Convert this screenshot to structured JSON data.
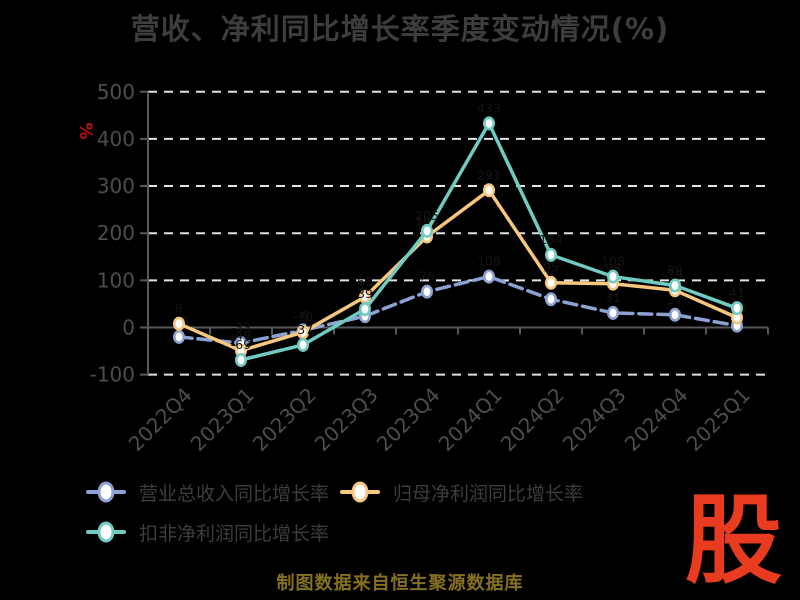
{
  "title": "营收、净利同比增长率季度变动情况(%)",
  "unit_label": "%",
  "footer": {
    "caption": "制图数据来自恒生聚源数据库",
    "logo_text": "股"
  },
  "colors": {
    "background": "#000000",
    "title": "#3d3d3d",
    "axis_text": "#4d4d4d",
    "grid": "#e3e3e3",
    "axis_line": "#585858",
    "unit_label": "#bb1111",
    "data_label": "#141414",
    "caption": "#85701f",
    "logo": "#e83b20",
    "marker_fill": "#ffffff"
  },
  "chart_data": {
    "type": "line",
    "title": "营收、净利同比增长率季度变动情况(%)",
    "xlabel": "",
    "ylabel": "%",
    "ylim": [
      -100,
      500
    ],
    "yticks": [
      -100,
      0,
      100,
      200,
      300,
      400,
      500
    ],
    "grid": true,
    "grid_style": "dashed",
    "legend_position": "bottom-left",
    "categories": [
      "2022Q4",
      "2023Q1",
      "2023Q2",
      "2023Q3",
      "2023Q4",
      "2024Q1",
      "2024Q2",
      "2024Q3",
      "2024Q4",
      "2025Q1"
    ],
    "series": [
      {
        "name": "营业总收入同比增长率",
        "color": "#8ba2d3",
        "style": "dashed",
        "values": [
          -20,
          -33,
          -6,
          24,
          76,
          108,
          60,
          31,
          27,
          4
        ]
      },
      {
        "name": "归母净利润同比增长率",
        "color": "#f7c77e",
        "style": "solid",
        "values": [
          8,
          -49,
          -10,
          65,
          193,
          291,
          95,
          93,
          79,
          21
        ]
      },
      {
        "name": "扣非净利润同比增长率",
        "color": "#70cbc2",
        "style": "solid",
        "values": [
          null,
          -69,
          -37,
          39,
          205,
          433,
          154,
          108,
          89,
          41
        ]
      }
    ]
  }
}
